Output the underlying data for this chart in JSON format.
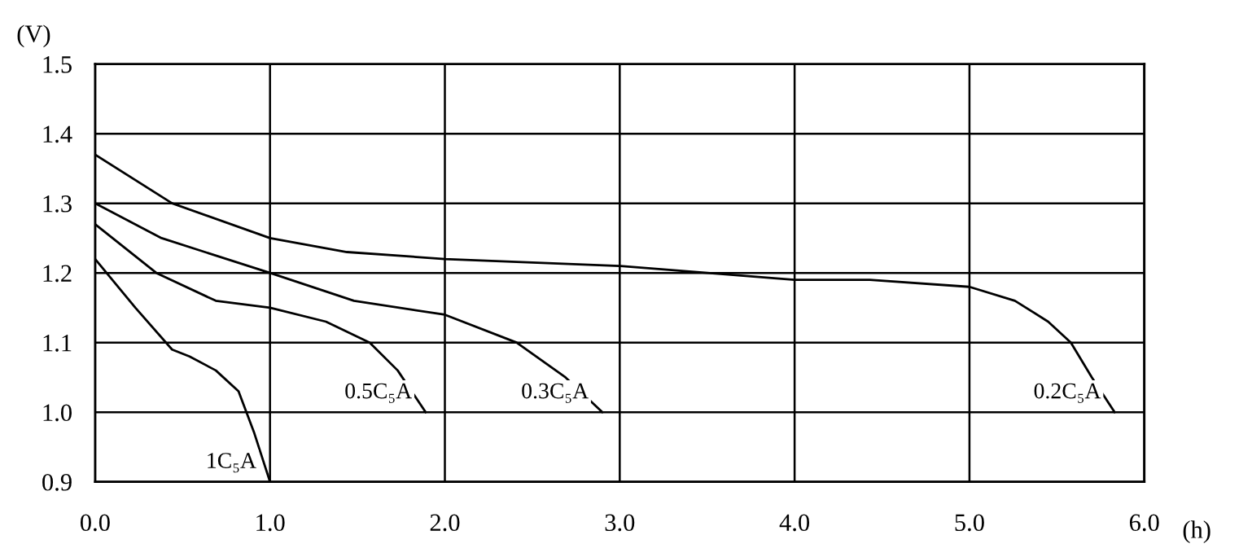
{
  "chart_data": {
    "type": "line",
    "ylabel": "(V)",
    "xlabel": "(h)",
    "xlim": [
      0,
      6
    ],
    "ylim": [
      0.9,
      1.5
    ],
    "xticks": [
      {
        "value": 0,
        "label": "0.0"
      },
      {
        "value": 1,
        "label": "1.0"
      },
      {
        "value": 2,
        "label": "2.0"
      },
      {
        "value": 3,
        "label": "3.0"
      },
      {
        "value": 4,
        "label": "4.0"
      },
      {
        "value": 5,
        "label": "5.0"
      },
      {
        "value": 6,
        "label": "6.0"
      }
    ],
    "yticks": [
      0.9,
      {
        "value": 1,
        "label": "1.0"
      },
      1.1,
      1.2,
      1.3,
      1.4,
      1.5
    ],
    "grid": true,
    "marker": "none",
    "line_style": "solid",
    "series": [
      {
        "name": "1C₅A",
        "color": "#000000",
        "x": [
          0,
          0.23,
          0.44,
          0.54,
          0.69,
          0.82,
          0.91,
          1.0
        ],
        "values": [
          1.22,
          1.15,
          1.09,
          1.08,
          1.06,
          1.03,
          0.97,
          0.9
        ]
      },
      {
        "name": "0.5C₅A",
        "color": "#000000",
        "x": [
          0,
          0.35,
          0.69,
          1.0,
          1.32,
          1.57,
          1.73,
          1.89
        ],
        "values": [
          1.27,
          1.2,
          1.16,
          1.15,
          1.13,
          1.1,
          1.06,
          1.0
        ]
      },
      {
        "name": "0.3C₅A",
        "color": "#000000",
        "x": [
          0,
          0.38,
          1.0,
          1.48,
          2.0,
          2.41,
          2.69,
          2.9
        ],
        "values": [
          1.3,
          1.25,
          1.2,
          1.16,
          1.14,
          1.1,
          1.05,
          1.0
        ]
      },
      {
        "name": "0.2C₅A",
        "color": "#000000",
        "x": [
          0,
          0.44,
          1.0,
          1.44,
          2.0,
          3.0,
          4.0,
          4.43,
          5.0,
          5.26,
          5.45,
          5.58,
          5.7,
          5.83
        ],
        "values": [
          1.37,
          1.3,
          1.25,
          1.23,
          1.22,
          1.21,
          1.19,
          1.19,
          1.18,
          1.16,
          1.13,
          1.1,
          1.05,
          1.0
        ]
      }
    ]
  }
}
